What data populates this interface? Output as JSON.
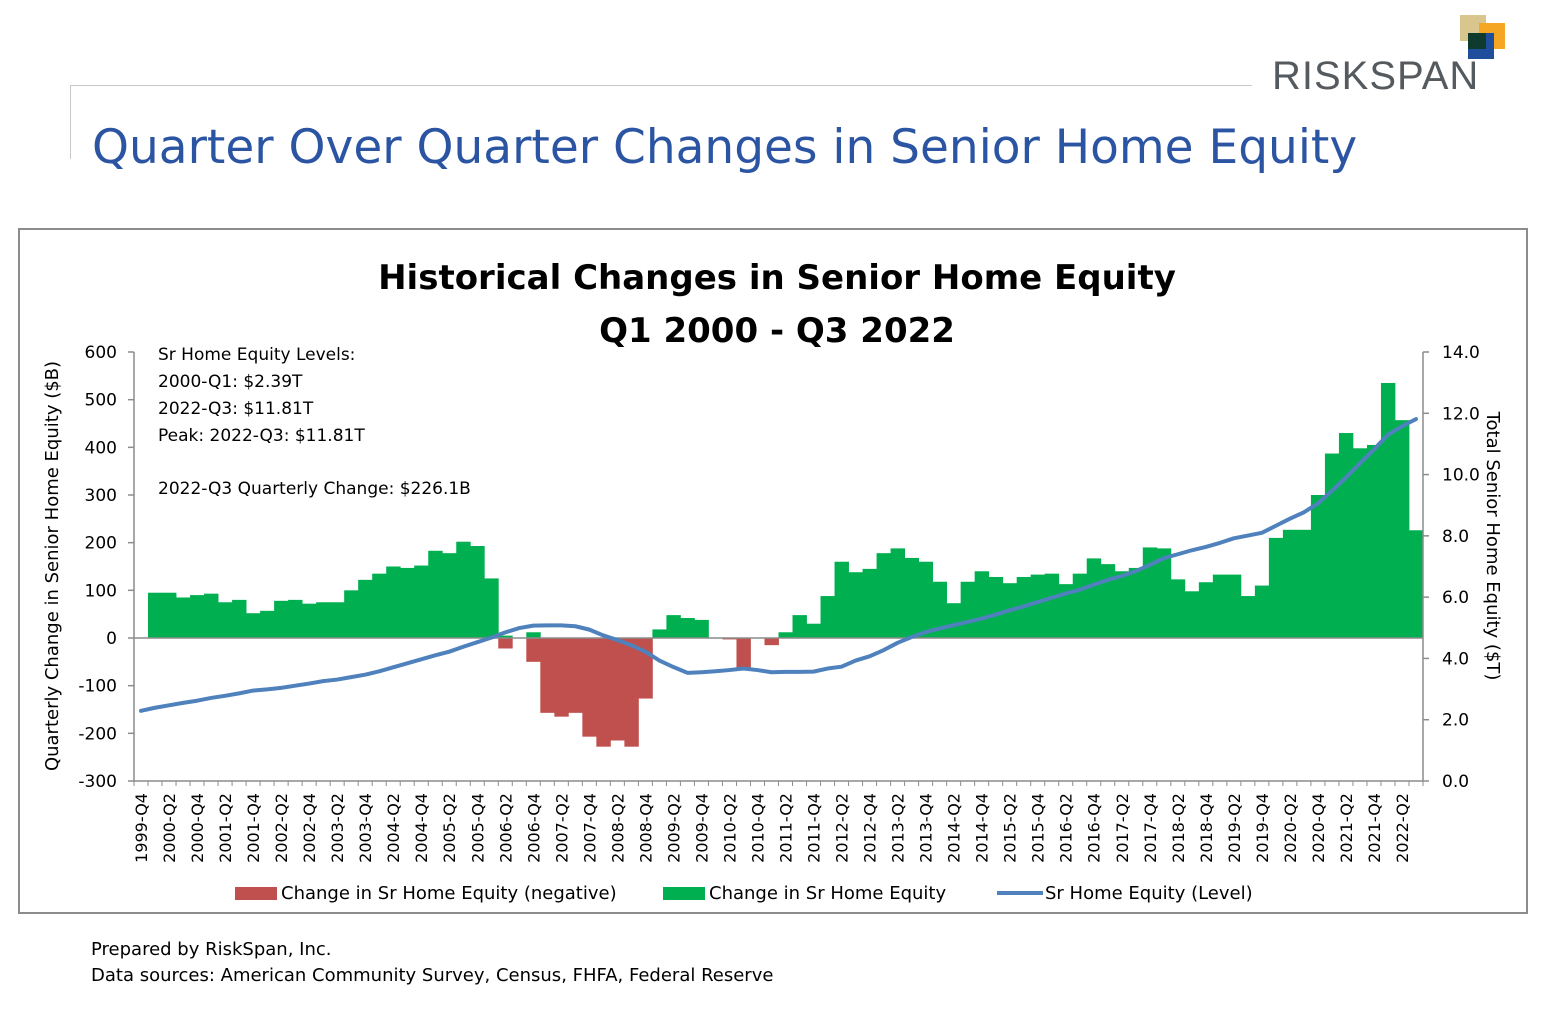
{
  "slide": {
    "title": "Quarter Over Quarter Changes in Senior Home Equity",
    "logo_text": "RISKSPAN",
    "footer": [
      "Prepared by RiskSpan, Inc.",
      "Data sources: American Community Survey, Census, FHFA, Federal Reserve"
    ]
  },
  "colors": {
    "title": "#2b55a3",
    "positive": "#00b050",
    "negative": "#c0504d",
    "line": "#4f81bd",
    "logo": [
      "#d9c68f",
      "#f5a623",
      "#1f4e9c",
      "#0e3b2e"
    ]
  },
  "chart_data": {
    "type": "bar",
    "title": "Historical Changes in Senior Home Equity",
    "subtitle": "Q1 2000 - Q3 2022",
    "ylabel": "Quarterly Change in Senior Home Equity ($B)",
    "y2label": "Total Senior Home Equity ($T)",
    "ylim": [
      -300,
      600
    ],
    "y2lim": [
      0,
      14
    ],
    "yticks": [
      "600",
      "500",
      "400",
      "300",
      "200",
      "100",
      "0",
      "-100",
      "-200",
      "-300"
    ],
    "y2ticks": [
      "14.0",
      "12.0",
      "10.0",
      "8.0",
      "6.0",
      "4.0",
      "2.0",
      "0.0"
    ],
    "xtick_labels": [
      "1999-Q4",
      "2000-Q2",
      "2000-Q4",
      "2001-Q2",
      "2001-Q4",
      "2002-Q2",
      "2002-Q4",
      "2003-Q2",
      "2003-Q4",
      "2004-Q2",
      "2004-Q4",
      "2005-Q2",
      "2005-Q4",
      "2006-Q2",
      "2006-Q4",
      "2007-Q2",
      "2007-Q4",
      "2008-Q2",
      "2008-Q4",
      "2009-Q2",
      "2009-Q4",
      "2010-Q2",
      "2010-Q4",
      "2011-Q2",
      "2011-Q4",
      "2012-Q2",
      "2012-Q4",
      "2013-Q2",
      "2013-Q4",
      "2014-Q2",
      "2014-Q4",
      "2015-Q2",
      "2015-Q4",
      "2016-Q2",
      "2016-Q4",
      "2017-Q2",
      "2017-Q4",
      "2018-Q2",
      "2018-Q4",
      "2019-Q2",
      "2019-Q4",
      "2020-Q2",
      "2020-Q4",
      "2021-Q2",
      "2021-Q4",
      "2022-Q2"
    ],
    "x": [
      "1999-Q4",
      "2000-Q1",
      "2000-Q2",
      "2000-Q3",
      "2000-Q4",
      "2001-Q1",
      "2001-Q2",
      "2001-Q3",
      "2001-Q4",
      "2002-Q1",
      "2002-Q2",
      "2002-Q3",
      "2002-Q4",
      "2003-Q1",
      "2003-Q2",
      "2003-Q3",
      "2003-Q4",
      "2004-Q1",
      "2004-Q2",
      "2004-Q3",
      "2004-Q4",
      "2005-Q1",
      "2005-Q2",
      "2005-Q3",
      "2005-Q4",
      "2006-Q1",
      "2006-Q2",
      "2006-Q3",
      "2006-Q4",
      "2007-Q1",
      "2007-Q2",
      "2007-Q3",
      "2007-Q4",
      "2008-Q1",
      "2008-Q2",
      "2008-Q3",
      "2008-Q4",
      "2009-Q1",
      "2009-Q2",
      "2009-Q3",
      "2009-Q4",
      "2010-Q1",
      "2010-Q2",
      "2010-Q3",
      "2010-Q4",
      "2011-Q1",
      "2011-Q2",
      "2011-Q3",
      "2011-Q4",
      "2012-Q1",
      "2012-Q2",
      "2012-Q3",
      "2012-Q4",
      "2013-Q1",
      "2013-Q2",
      "2013-Q3",
      "2013-Q4",
      "2014-Q1",
      "2014-Q2",
      "2014-Q3",
      "2014-Q4",
      "2015-Q1",
      "2015-Q2",
      "2015-Q3",
      "2015-Q4",
      "2016-Q1",
      "2016-Q2",
      "2016-Q3",
      "2016-Q4",
      "2017-Q1",
      "2017-Q2",
      "2017-Q3",
      "2017-Q4",
      "2018-Q1",
      "2018-Q2",
      "2018-Q3",
      "2018-Q4",
      "2019-Q1",
      "2019-Q2",
      "2019-Q3",
      "2019-Q4",
      "2020-Q1",
      "2020-Q2",
      "2020-Q3",
      "2020-Q4",
      "2021-Q1",
      "2021-Q2",
      "2021-Q3",
      "2021-Q4",
      "2022-Q1",
      "2022-Q2",
      "2022-Q3"
    ],
    "series": [
      {
        "name": "Change in Sr Home Equity (negative)",
        "kind": "bar",
        "values": [
          0,
          0,
          0,
          0,
          0,
          0,
          0,
          0,
          0,
          0,
          0,
          0,
          0,
          0,
          0,
          0,
          0,
          0,
          0,
          0,
          0,
          0,
          0,
          0,
          0,
          0,
          -22,
          0,
          -50,
          -157,
          -165,
          -157,
          -207,
          -228,
          -215,
          -228,
          -127,
          0,
          0,
          0,
          0,
          0,
          -3,
          -65,
          0,
          -15,
          0,
          0,
          0,
          0,
          0,
          0,
          0,
          0,
          0,
          0,
          0,
          0,
          0,
          0,
          0,
          0,
          0,
          0,
          0,
          0,
          0,
          0,
          0,
          0,
          0,
          0,
          0,
          0,
          0,
          0,
          0,
          0,
          0,
          0,
          0,
          0,
          0,
          0,
          0,
          0,
          0,
          0,
          0,
          0,
          0,
          0
        ]
      },
      {
        "name": "Change in Sr Home Equity",
        "kind": "bar",
        "values": [
          0,
          95,
          95,
          85,
          90,
          93,
          75,
          80,
          52,
          57,
          78,
          80,
          72,
          75,
          75,
          100,
          122,
          135,
          150,
          147,
          152,
          183,
          178,
          202,
          193,
          125,
          5,
          0,
          12,
          0,
          0,
          0,
          0,
          0,
          0,
          0,
          0,
          18,
          48,
          42,
          38,
          0,
          0,
          0,
          0,
          0,
          12,
          48,
          30,
          88,
          160,
          138,
          145,
          178,
          188,
          168,
          160,
          118,
          73,
          118,
          140,
          128,
          115,
          128,
          133,
          135,
          113,
          135,
          167,
          155,
          140,
          147,
          190,
          188,
          123,
          98,
          117,
          133,
          133,
          88,
          110,
          210,
          227,
          227,
          300,
          387,
          430,
          398,
          405,
          535,
          457,
          226
        ]
      },
      {
        "name": "Sr Home Equity (Level)",
        "kind": "line",
        "values": [
          2.29,
          2.39,
          2.47,
          2.55,
          2.62,
          2.71,
          2.78,
          2.86,
          2.95,
          2.99,
          3.04,
          3.11,
          3.18,
          3.26,
          3.31,
          3.39,
          3.47,
          3.58,
          3.71,
          3.84,
          3.97,
          4.1,
          4.22,
          4.38,
          4.53,
          4.68,
          4.85,
          4.99,
          5.07,
          5.08,
          5.08,
          5.05,
          4.94,
          4.75,
          4.6,
          4.43,
          4.22,
          3.93,
          3.72,
          3.53,
          3.55,
          3.58,
          3.62,
          3.67,
          3.62,
          3.55,
          3.56,
          3.56,
          3.57,
          3.67,
          3.73,
          3.93,
          4.07,
          4.27,
          4.51,
          4.7,
          4.86,
          4.98,
          5.09,
          5.19,
          5.3,
          5.43,
          5.57,
          5.7,
          5.84,
          5.98,
          6.12,
          6.24,
          6.41,
          6.56,
          6.69,
          6.85,
          7.05,
          7.27,
          7.4,
          7.53,
          7.64,
          7.77,
          7.92,
          8.01,
          8.1,
          8.33,
          8.56,
          8.77,
          9.06,
          9.47,
          9.9,
          10.37,
          10.82,
          11.3,
          11.58,
          11.81
        ]
      }
    ],
    "annotation": [
      "Sr Home Equity Levels:",
      "2000-Q1: $2.39T",
      "2022-Q3: $11.81T",
      "Peak: 2022-Q3: $11.81T",
      "",
      "2022-Q3 Quarterly Change: $226.1B"
    ],
    "legend_position": "bottom",
    "grid": false
  }
}
